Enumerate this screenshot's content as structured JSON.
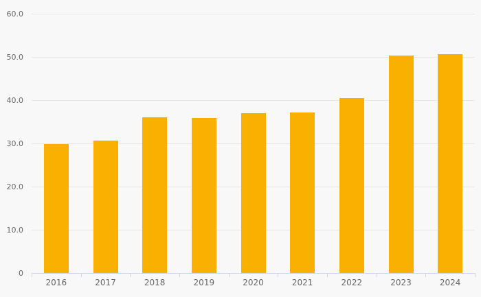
{
  "chart_data": {
    "type": "bar",
    "title": "",
    "xlabel": "",
    "ylabel": "",
    "categories": [
      "2016",
      "2017",
      "2018",
      "2019",
      "2020",
      "2021",
      "2022",
      "2023",
      "2024"
    ],
    "values": [
      29.9,
      30.7,
      36.1,
      35.9,
      37.0,
      37.2,
      40.5,
      50.3,
      50.6
    ],
    "ylim": [
      0,
      60
    ],
    "yticks": [
      0,
      10,
      20,
      30,
      40,
      50,
      60
    ],
    "ytick_labels": [
      "0",
      "10.0",
      "20.0",
      "30.0",
      "40.0",
      "50.0",
      "60.0"
    ],
    "grid": true,
    "legend": false,
    "colors": {
      "bar": "#f9b000",
      "background": "#f8f8f8",
      "gridline": "#e7e7e7",
      "axis_line": "#ccd6eb",
      "label_text": "#666666"
    }
  }
}
